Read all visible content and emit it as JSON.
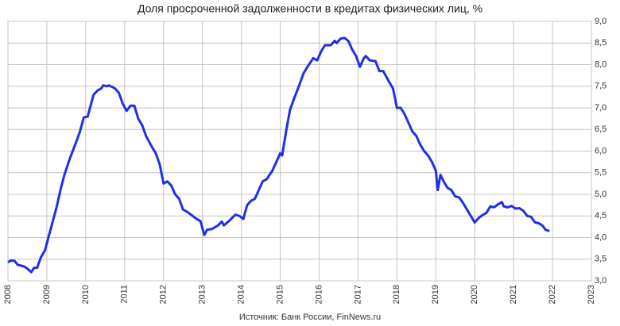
{
  "chart_data": {
    "type": "line",
    "title": "Доля просроченной задолженности в кредитах физических лиц, %",
    "source": "Источник: Банк России, FinNews.ru",
    "xlim": [
      2008,
      2023
    ],
    "xticks": [
      2008,
      2009,
      2010,
      2011,
      2012,
      2013,
      2014,
      2015,
      2016,
      2017,
      2018,
      2019,
      2020,
      2021,
      2022,
      2023
    ],
    "ylim": [
      3,
      9
    ],
    "yticks": [
      {
        "value": 3,
        "label": "3,0"
      },
      {
        "value": 3.5,
        "label": "3,5"
      },
      {
        "value": 4,
        "label": "4,0"
      },
      {
        "value": 4.5,
        "label": "4,5"
      },
      {
        "value": 5,
        "label": "5,0"
      },
      {
        "value": 5.5,
        "label": "5,5"
      },
      {
        "value": 6,
        "label": "6,0"
      },
      {
        "value": 6.5,
        "label": "6,5"
      },
      {
        "value": 7,
        "label": "7,0"
      },
      {
        "value": 7.5,
        "label": "7,5"
      },
      {
        "value": 8,
        "label": "8,0"
      },
      {
        "value": 8.5,
        "label": "8,5"
      },
      {
        "value": 9,
        "label": "9,0"
      }
    ],
    "grid": true,
    "x": [
      2008.0,
      2008.08,
      2008.17,
      2008.25,
      2008.42,
      2008.5,
      2008.6,
      2008.67,
      2008.75,
      2008.85,
      2008.95,
      2009.1,
      2009.25,
      2009.35,
      2009.45,
      2009.6,
      2009.75,
      2009.85,
      2009.95,
      2010.05,
      2010.2,
      2010.3,
      2010.4,
      2010.45,
      2010.55,
      2010.6,
      2010.75,
      2010.85,
      2010.95,
      2011.05,
      2011.15,
      2011.25,
      2011.35,
      2011.45,
      2011.55,
      2011.7,
      2011.8,
      2011.9,
      2012.0,
      2012.1,
      2012.2,
      2012.3,
      2012.4,
      2012.5,
      2012.6,
      2012.75,
      2012.85,
      2012.95,
      2013.05,
      2013.12,
      2013.25,
      2013.4,
      2013.5,
      2013.55,
      2013.7,
      2013.85,
      2013.95,
      2014.05,
      2014.15,
      2014.25,
      2014.35,
      2014.45,
      2014.55,
      2014.65,
      2014.8,
      2014.9,
      2015.0,
      2015.05,
      2015.15,
      2015.25,
      2015.35,
      2015.5,
      2015.6,
      2015.7,
      2015.85,
      2015.95,
      2016.05,
      2016.15,
      2016.3,
      2016.4,
      2016.45,
      2016.55,
      2016.65,
      2016.75,
      2016.85,
      2016.95,
      2017.05,
      2017.15,
      2017.2,
      2017.3,
      2017.45,
      2017.55,
      2017.65,
      2017.8,
      2017.9,
      2018.0,
      2018.1,
      2018.2,
      2018.3,
      2018.4,
      2018.5,
      2018.6,
      2018.7,
      2018.8,
      2018.9,
      2019.0,
      2019.05,
      2019.12,
      2019.2,
      2019.3,
      2019.4,
      2019.5,
      2019.6,
      2019.7,
      2019.8,
      2019.9,
      2020.0,
      2020.1,
      2020.2,
      2020.3,
      2020.4,
      2020.5,
      2020.6,
      2020.7,
      2020.75,
      2020.85,
      2020.95,
      2021.05,
      2021.15,
      2021.25,
      2021.35,
      2021.45,
      2021.55,
      2021.65,
      2021.75,
      2021.82,
      2021.92
    ],
    "series": [
      {
        "color": "#1f2fe6",
        "values": [
          3.43,
          3.47,
          3.46,
          3.37,
          3.33,
          3.28,
          3.2,
          3.3,
          3.3,
          3.55,
          3.7,
          4.2,
          4.7,
          5.1,
          5.45,
          5.85,
          6.2,
          6.45,
          6.78,
          6.8,
          7.3,
          7.4,
          7.45,
          7.52,
          7.5,
          7.52,
          7.45,
          7.35,
          7.1,
          6.93,
          7.05,
          7.05,
          6.75,
          6.6,
          6.35,
          6.1,
          5.95,
          5.7,
          5.25,
          5.3,
          5.2,
          5.0,
          4.9,
          4.65,
          4.6,
          4.5,
          4.43,
          4.38,
          4.06,
          4.18,
          4.2,
          4.28,
          4.37,
          4.28,
          4.4,
          4.53,
          4.5,
          4.43,
          4.75,
          4.85,
          4.9,
          5.1,
          5.3,
          5.35,
          5.55,
          5.75,
          5.95,
          5.9,
          6.45,
          6.95,
          7.2,
          7.55,
          7.8,
          7.95,
          8.15,
          8.1,
          8.3,
          8.45,
          8.45,
          8.55,
          8.5,
          8.6,
          8.62,
          8.55,
          8.35,
          8.2,
          7.95,
          8.15,
          8.2,
          8.1,
          8.08,
          7.85,
          7.85,
          7.6,
          7.45,
          7.0,
          7.0,
          6.85,
          6.65,
          6.45,
          6.35,
          6.15,
          6.0,
          5.9,
          5.75,
          5.55,
          5.1,
          5.45,
          5.3,
          5.15,
          5.1,
          4.95,
          4.93,
          4.8,
          4.65,
          4.5,
          4.35,
          4.45,
          4.52,
          4.57,
          4.72,
          4.7,
          4.77,
          4.82,
          4.72,
          4.7,
          4.73,
          4.67,
          4.68,
          4.62,
          4.5,
          4.48,
          4.35,
          4.33,
          4.27,
          4.18,
          4.15
        ]
      }
    ]
  }
}
